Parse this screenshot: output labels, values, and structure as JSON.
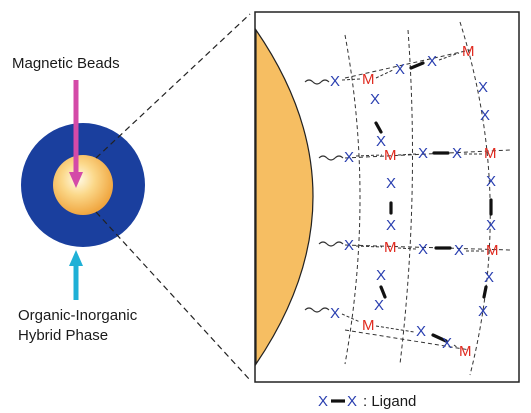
{
  "labels": {
    "magnetic_beads": "Magnetic Beads",
    "hybrid_line1": "Organic-Inorganic",
    "hybrid_line2": "Hybrid Phase",
    "legend_x1": "X",
    "legend_x2": "X",
    "legend_text": ": Ligand"
  },
  "symbols": {
    "ligand": "X",
    "metal": "M"
  },
  "colors": {
    "outer_phase": "#1a3f9e",
    "bead_core": "#f6be62",
    "bead_surface": "#f6be62",
    "magenta_arrow": "#d44aa8",
    "cyan_arrow": "#1fb0d6",
    "ligand_text": "#2a3fb0",
    "metal_text": "#e02a1f"
  }
}
